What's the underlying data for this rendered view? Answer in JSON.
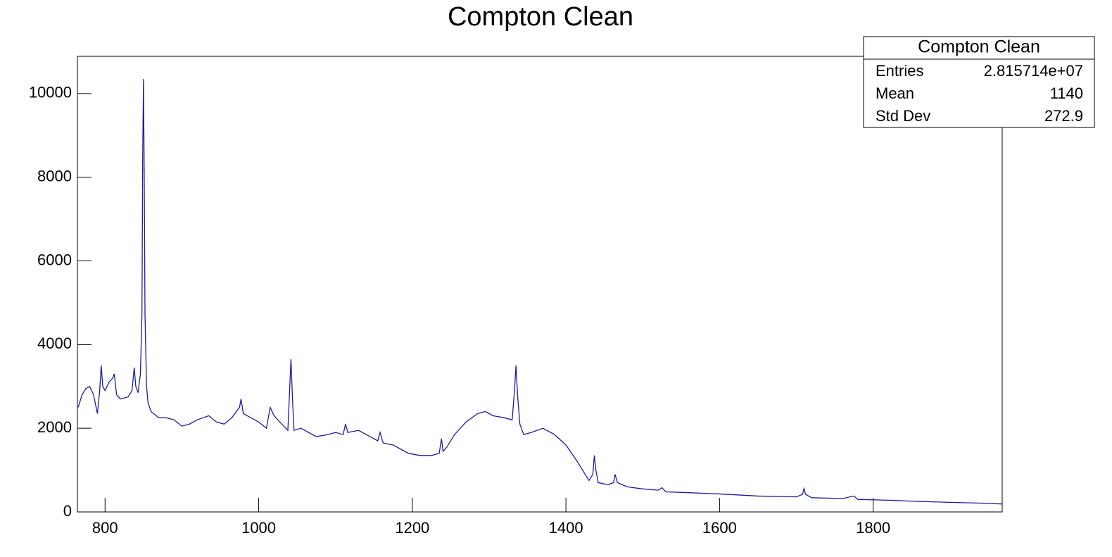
{
  "chart_data": {
    "type": "line",
    "title": "Compton Clean",
    "color": "#1c1c9c",
    "xlim": [
      764,
      1968
    ],
    "ylim": [
      0,
      10890
    ],
    "xticks": [
      800,
      1000,
      1200,
      1400,
      1600,
      1800
    ],
    "yticks": [
      0,
      2000,
      4000,
      6000,
      8000,
      10000
    ],
    "stats": {
      "title": "Compton Clean",
      "rows": [
        [
          "Entries",
          "2.815714e+07"
        ],
        [
          "Mean",
          "1140"
        ],
        [
          "Std Dev",
          "272.9"
        ]
      ]
    },
    "x": [
      765,
      770,
      775,
      780,
      785,
      790,
      793,
      795,
      797,
      800,
      805,
      810,
      812,
      815,
      820,
      830,
      835,
      838,
      840,
      843,
      846,
      848,
      849,
      850,
      851,
      852,
      854,
      856,
      860,
      870,
      880,
      890,
      900,
      910,
      920,
      935,
      945,
      955,
      965,
      975,
      977,
      980,
      990,
      1000,
      1010,
      1015,
      1020,
      1030,
      1038,
      1040,
      1042,
      1044,
      1046,
      1055,
      1065,
      1075,
      1090,
      1100,
      1110,
      1113,
      1116,
      1130,
      1145,
      1155,
      1158,
      1162,
      1175,
      1185,
      1195,
      1210,
      1225,
      1235,
      1238,
      1240,
      1245,
      1255,
      1270,
      1285,
      1295,
      1305,
      1320,
      1330,
      1333,
      1335,
      1337,
      1340,
      1345,
      1355,
      1370,
      1385,
      1400,
      1415,
      1425,
      1430,
      1435,
      1437,
      1439,
      1442,
      1455,
      1462,
      1464,
      1467,
      1480,
      1500,
      1520,
      1525,
      1530,
      1560,
      1600,
      1650,
      1700,
      1708,
      1710,
      1712,
      1720,
      1760,
      1775,
      1780,
      1820,
      1860,
      1900,
      1940,
      1968
    ],
    "values": [
      2500,
      2800,
      2950,
      3000,
      2800,
      2350,
      2900,
      3500,
      3000,
      2900,
      3100,
      3200,
      3300,
      2800,
      2700,
      2750,
      2900,
      3450,
      3000,
      2850,
      3300,
      4700,
      8500,
      10350,
      8000,
      4700,
      3000,
      2600,
      2400,
      2250,
      2250,
      2200,
      2050,
      2100,
      2200,
      2300,
      2150,
      2100,
      2250,
      2500,
      2700,
      2350,
      2250,
      2150,
      2000,
      2500,
      2300,
      2100,
      1950,
      2800,
      3650,
      2700,
      1950,
      2000,
      1900,
      1800,
      1850,
      1900,
      1850,
      2100,
      1900,
      1950,
      1800,
      1700,
      1900,
      1650,
      1600,
      1500,
      1400,
      1350,
      1350,
      1400,
      1750,
      1450,
      1550,
      1850,
      2150,
      2350,
      2400,
      2300,
      2250,
      2200,
      2900,
      3500,
      2800,
      2100,
      1850,
      1900,
      2000,
      1850,
      1600,
      1200,
      900,
      750,
      900,
      1350,
      1000,
      700,
      650,
      700,
      900,
      700,
      600,
      550,
      520,
      580,
      480,
      460,
      430,
      380,
      360,
      420,
      560,
      420,
      340,
      320,
      380,
      300,
      280,
      250,
      230,
      210,
      190
    ]
  }
}
